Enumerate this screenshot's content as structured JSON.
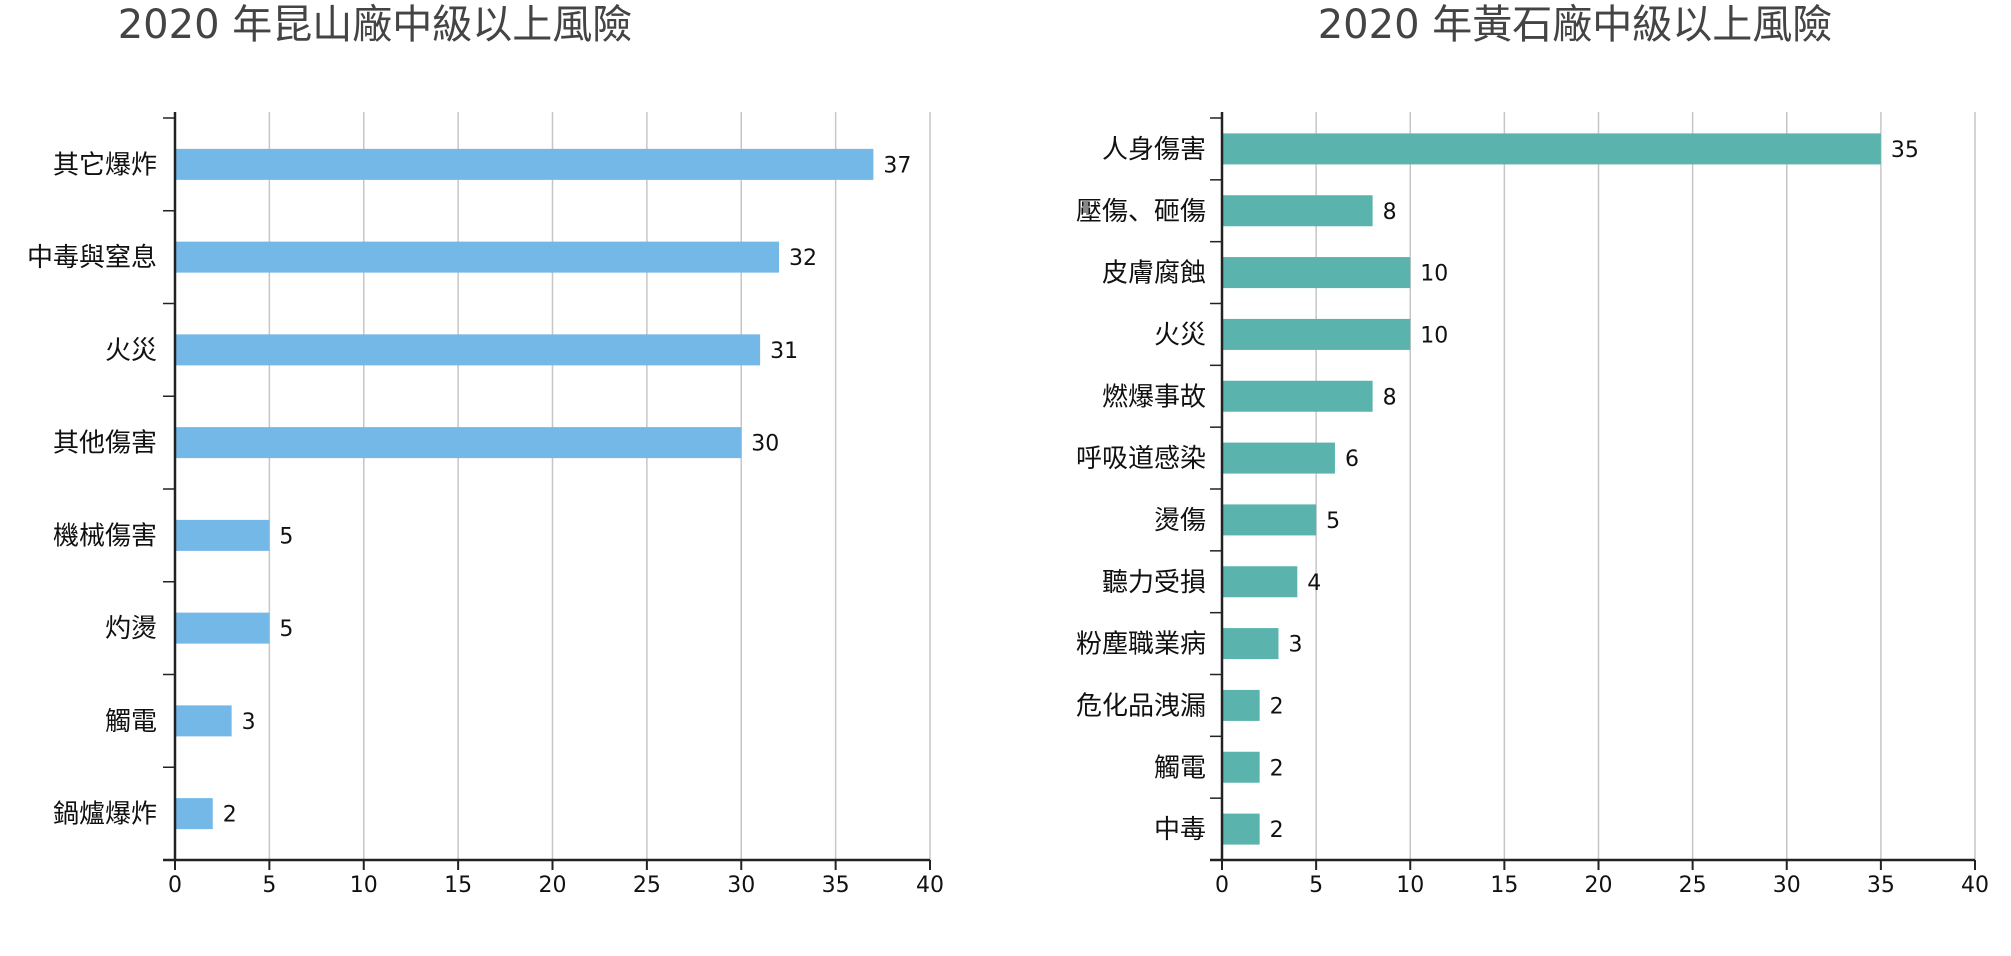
{
  "chart_data": [
    {
      "type": "bar",
      "orientation": "horizontal",
      "title": "2020 年昆山廠中級以上風險",
      "categories": [
        "其它爆炸",
        "中毒與窒息",
        "火災",
        "其他傷害",
        "機械傷害",
        "灼燙",
        "觸電",
        "鍋爐爆炸"
      ],
      "values": [
        37,
        32,
        31,
        30,
        5,
        5,
        3,
        2
      ],
      "data_labels": [
        "37",
        "32",
        "31",
        "30",
        "5",
        "5",
        "3",
        "2"
      ],
      "xlim": [
        0,
        40
      ],
      "xticks": [
        "0",
        "5",
        "10",
        "15",
        "20",
        "25",
        "30",
        "35",
        "40"
      ],
      "grid": "vertical",
      "legend": "none",
      "bar_color": "#74b8e7"
    },
    {
      "type": "bar",
      "orientation": "horizontal",
      "title": "2020 年黃石廠中級以上風險",
      "categories": [
        "人身傷害",
        "壓傷、砸傷",
        "皮膚腐蝕",
        "火災",
        "燃爆事故",
        "呼吸道感染",
        "燙傷",
        "聽力受損",
        "粉塵職業病",
        "危化品洩漏",
        "觸電",
        "中毒"
      ],
      "values": [
        35,
        8,
        10,
        10,
        8,
        6,
        5,
        4,
        3,
        2,
        2,
        2
      ],
      "data_labels": [
        "35",
        "8",
        "10",
        "10",
        "8",
        "6",
        "5",
        "4",
        "3",
        "2",
        "2",
        "2"
      ],
      "xlim": [
        0,
        40
      ],
      "xticks": [
        "0",
        "5",
        "10",
        "15",
        "20",
        "25",
        "30",
        "35",
        "40"
      ],
      "grid": "vertical",
      "legend": "none",
      "bar_color": "#5ab3ad"
    }
  ]
}
